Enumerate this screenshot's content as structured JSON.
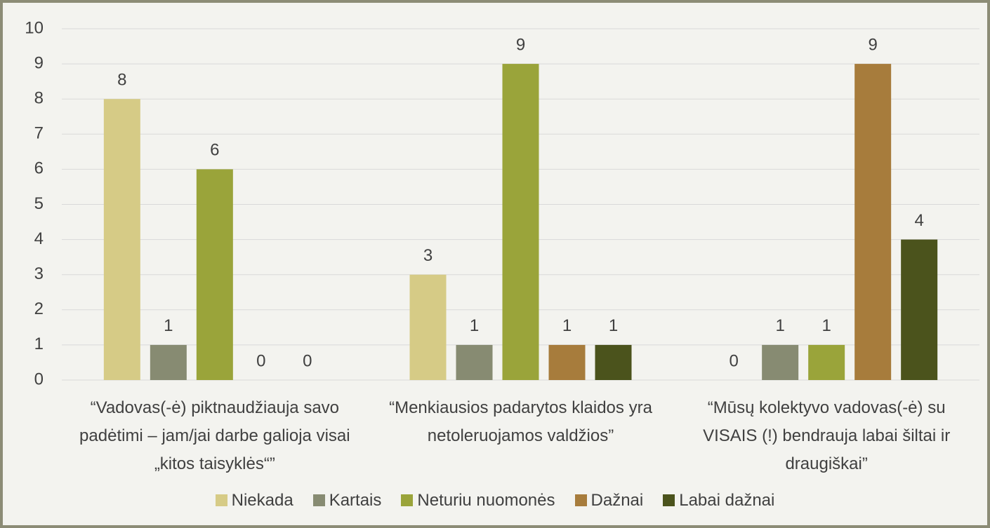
{
  "chart_data": {
    "type": "bar",
    "categories": [
      "“Vadovas(-ė) piktnaudžiauja savo padėtimi – jam/jai darbe galioja visai „kitos taisyklės“”",
      "“Menkiausios padarytos klaidos yra netoleruojamos valdžios”",
      "“Mūsų kolektyvo vadovas(-ė) su VISAIS (!) bendrauja labai šiltai ir draugiškai”"
    ],
    "series": [
      {
        "name": "Niekada",
        "color": "#d6cb86",
        "values": [
          8,
          3,
          0
        ]
      },
      {
        "name": "Kartais",
        "color": "#878b72",
        "values": [
          1,
          1,
          1
        ]
      },
      {
        "name": "Neturiu nuomonės",
        "color": "#9aa43a",
        "values": [
          6,
          9,
          1
        ]
      },
      {
        "name": "Dažnai",
        "color": "#a77c3c",
        "values": [
          0,
          1,
          9
        ]
      },
      {
        "name": "Labai dažnai",
        "color": "#4b531c",
        "values": [
          0,
          1,
          4
        ]
      }
    ],
    "ylim": [
      0,
      10
    ],
    "yticks": [
      0,
      1,
      2,
      3,
      4,
      5,
      6,
      7,
      8,
      9,
      10
    ],
    "grid": true,
    "legend": "bottom"
  }
}
